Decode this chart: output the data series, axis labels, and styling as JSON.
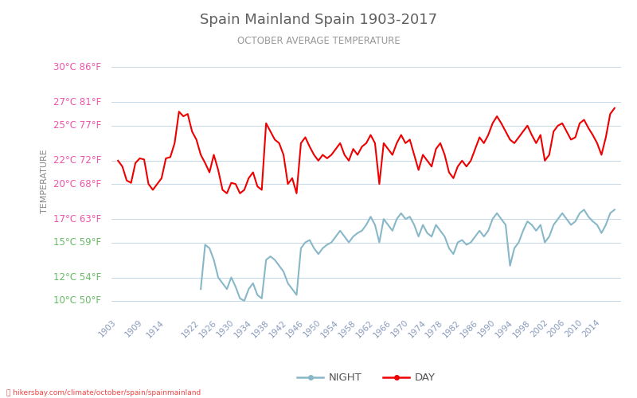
{
  "title": "Spain Mainland Spain 1903-2017",
  "subtitle": "OCTOBER AVERAGE TEMPERATURE",
  "ylabel": "TEMPERATURE",
  "xlabel_url": "hikersbay.com/climate/october/spain/spainmainland",
  "y_ticks_c": [
    10,
    12,
    15,
    17,
    20,
    22,
    25,
    27,
    30
  ],
  "y_ticks_f": [
    50,
    54,
    59,
    63,
    68,
    72,
    77,
    81,
    86
  ],
  "y_tick_colors": [
    "#66bb66",
    "#66bb66",
    "#66bb66",
    "#ee55aa",
    "#ee55aa",
    "#ee55aa",
    "#ee55aa",
    "#ee55aa",
    "#ee55aa"
  ],
  "ylim": [
    9.0,
    31.5
  ],
  "xlim": [
    1901.5,
    2018.5
  ],
  "start_year": 1903,
  "end_year": 2017,
  "day_color": "#ee0000",
  "night_color": "#88b8c8",
  "background_color": "#ffffff",
  "grid_color": "#c5d8e8",
  "title_color": "#606060",
  "subtitle_color": "#999999",
  "x_tick_color": "#8899bb",
  "ylabel_color": "#888888",
  "legend_night": "NIGHT",
  "legend_day": "DAY",
  "x_ticks": [
    1903,
    1909,
    1914,
    1922,
    1926,
    1930,
    1934,
    1938,
    1942,
    1946,
    1950,
    1954,
    1958,
    1962,
    1966,
    1970,
    1974,
    1978,
    1982,
    1986,
    1990,
    1994,
    1998,
    2002,
    2006,
    2010,
    2014
  ],
  "day_temps": [
    22.0,
    21.5,
    20.3,
    20.1,
    21.8,
    22.2,
    22.1,
    20.0,
    19.5,
    20.0,
    20.5,
    22.2,
    22.3,
    23.5,
    26.2,
    25.8,
    26.0,
    24.5,
    23.8,
    22.5,
    21.8,
    21.0,
    22.5,
    21.2,
    19.5,
    19.2,
    20.1,
    20.0,
    19.2,
    19.5,
    20.5,
    21.0,
    19.8,
    19.5,
    25.2,
    24.5,
    23.8,
    23.5,
    22.5,
    20.0,
    20.5,
    19.2,
    23.5,
    24.0,
    23.2,
    22.5,
    22.0,
    22.5,
    22.2,
    22.5,
    23.0,
    23.5,
    22.5,
    22.0,
    23.0,
    22.5,
    23.2,
    23.5,
    24.2,
    23.5,
    20.0,
    23.5,
    23.0,
    22.5,
    23.5,
    24.2,
    23.5,
    23.8,
    22.5,
    21.2,
    22.5,
    22.0,
    21.5,
    23.0,
    23.5,
    22.5,
    21.0,
    20.5,
    21.5,
    22.0,
    21.5,
    22.0,
    23.0,
    24.0,
    23.5,
    24.2,
    25.2,
    25.8,
    25.2,
    24.5,
    23.8,
    23.5,
    24.0,
    24.5,
    25.0,
    24.2,
    23.5,
    24.2,
    22.0,
    22.5,
    24.5,
    25.0,
    25.2,
    24.5,
    23.8,
    24.0,
    25.2,
    25.5,
    24.8,
    24.2,
    23.5,
    22.5,
    24.0,
    26.0,
    26.5,
    27.0
  ],
  "night_temps": [
    null,
    null,
    null,
    null,
    null,
    null,
    null,
    null,
    null,
    null,
    null,
    null,
    null,
    null,
    null,
    null,
    null,
    null,
    null,
    11.0,
    14.8,
    14.5,
    13.5,
    12.0,
    11.5,
    11.0,
    12.0,
    11.2,
    10.2,
    10.0,
    11.0,
    11.5,
    10.5,
    10.2,
    13.5,
    13.8,
    13.5,
    13.0,
    12.5,
    11.5,
    11.0,
    10.5,
    14.5,
    15.0,
    15.2,
    14.5,
    14.0,
    14.5,
    14.8,
    15.0,
    15.5,
    16.0,
    15.5,
    15.0,
    15.5,
    15.8,
    16.0,
    16.5,
    17.2,
    16.5,
    15.0,
    17.0,
    16.5,
    16.0,
    17.0,
    17.5,
    17.0,
    17.2,
    16.5,
    15.5,
    16.5,
    15.8,
    15.5,
    16.5,
    16.0,
    15.5,
    14.5,
    14.0,
    15.0,
    15.2,
    14.8,
    15.0,
    15.5,
    16.0,
    15.5,
    16.0,
    17.0,
    17.5,
    17.0,
    16.5,
    13.0,
    14.5,
    15.0,
    16.0,
    16.8,
    16.5,
    16.0,
    16.5,
    15.0,
    15.5,
    16.5,
    17.0,
    17.5,
    17.0,
    16.5,
    16.8,
    17.5,
    17.8,
    17.2,
    16.8,
    16.5,
    15.8,
    16.5,
    17.5,
    17.8,
    17.5
  ]
}
